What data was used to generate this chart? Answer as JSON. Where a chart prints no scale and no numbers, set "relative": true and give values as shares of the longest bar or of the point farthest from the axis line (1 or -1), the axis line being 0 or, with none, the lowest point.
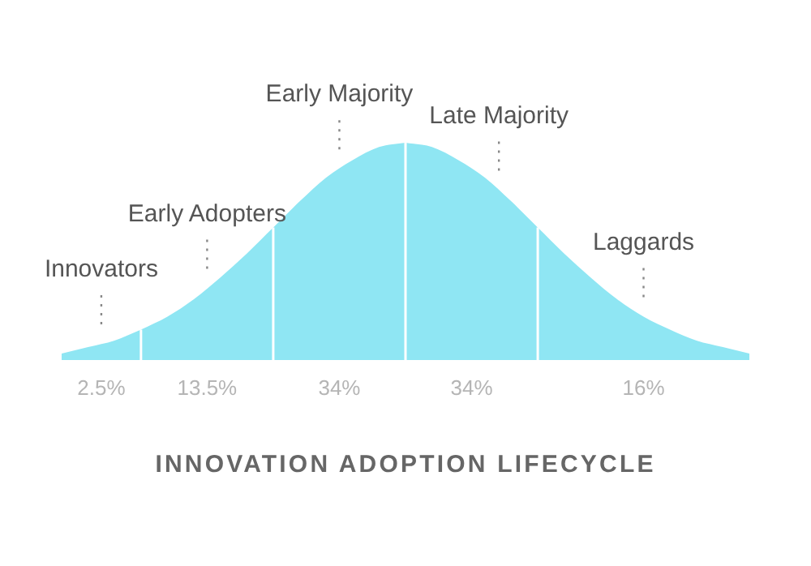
{
  "chart_data": {
    "type": "area",
    "title": "INNOVATION ADOPTION LIFECYCLE",
    "relative": true,
    "categories": [
      null,
      null,
      null,
      null,
      null,
      null,
      null,
      null,
      null,
      null,
      null,
      null,
      null,
      null,
      null,
      null,
      null,
      null,
      null,
      null,
      null,
      null,
      null,
      null,
      null,
      null,
      null
    ],
    "series": [
      {
        "name": "Innovators",
        "color": "#8fe6f3",
        "values": [
          0.03,
          0.06,
          0.09,
          0.14,
          null,
          null,
          null,
          null,
          null,
          null,
          null,
          null,
          null,
          null,
          null,
          null,
          null,
          null,
          null,
          null,
          null,
          null,
          null,
          null,
          null,
          null,
          null
        ]
      },
      {
        "name": "Early Adopters",
        "color": "#8fe6f3",
        "values": [
          null,
          null,
          null,
          0.14,
          0.2,
          0.28,
          0.38,
          0.49,
          0.61,
          null,
          null,
          null,
          null,
          null,
          null,
          null,
          null,
          null,
          null,
          null,
          null,
          null,
          null,
          null,
          null,
          null,
          null
        ]
      },
      {
        "name": "Early Majority",
        "color": "#8fe6f3",
        "values": [
          null,
          null,
          null,
          null,
          null,
          null,
          null,
          null,
          0.61,
          0.73,
          0.84,
          0.92,
          0.98,
          1,
          null,
          null,
          null,
          null,
          null,
          null,
          null,
          null,
          null,
          null,
          null,
          null,
          null
        ]
      },
      {
        "name": "Late Majority",
        "color": "#8fe6f3",
        "values": [
          null,
          null,
          null,
          null,
          null,
          null,
          null,
          null,
          null,
          null,
          null,
          null,
          null,
          1,
          0.98,
          0.92,
          0.84,
          0.73,
          0.61,
          null,
          null,
          null,
          null,
          null,
          null,
          null,
          null
        ]
      },
      {
        "name": "Laggards",
        "color": "#8fe6f3",
        "values": [
          null,
          null,
          null,
          null,
          null,
          null,
          null,
          null,
          null,
          null,
          null,
          null,
          null,
          null,
          null,
          null,
          null,
          null,
          0.61,
          0.49,
          0.38,
          0.28,
          0.2,
          0.14,
          0.09,
          0.06,
          0.03
        ]
      }
    ],
    "annotations": [
      "2.5%",
      "13.5%",
      "34%",
      "34%",
      "16%"
    ]
  }
}
